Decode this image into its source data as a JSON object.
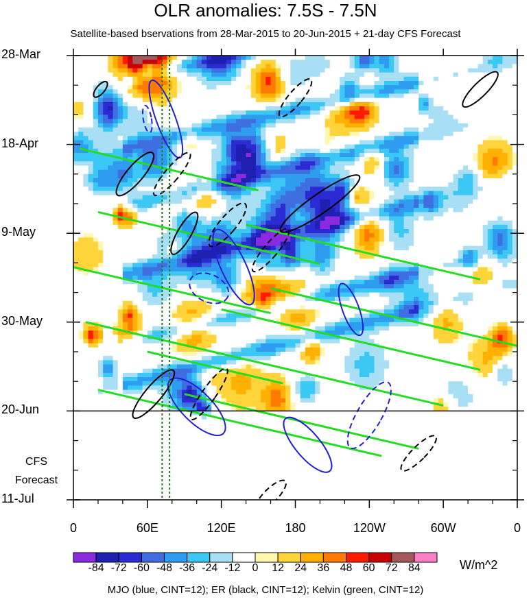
{
  "title": "OLR anomalies: 7.5S - 7.5N",
  "subtitle": "Satellite-based bservations from 28-Mar-2015 to 20-Jun-2015 + 21-day CFS Forecast",
  "forecast_label_1": "CFS",
  "forecast_label_2": "Forecast",
  "units": "W/m^2",
  "footer": "MJO (blue, CINT=12); ER (black, CINT=12); Kelvin (green, CINT=12)",
  "colors": {
    "mjo": "#1f1fd6",
    "er": "#000000",
    "kelvin": "#22dd22",
    "marker": "#1a7a1a"
  },
  "colorbar": {
    "labels": [
      "-84",
      "-72",
      "-60",
      "-48",
      "-36",
      "-24",
      "-12",
      "0",
      "12",
      "24",
      "36",
      "48",
      "60",
      "72",
      "84"
    ],
    "colors": [
      "#8a2be2",
      "#1f1fb0",
      "#2b2bd4",
      "#3f6ee0",
      "#2f9cf0",
      "#3cc8f5",
      "#a8dff5",
      "#ffffff",
      "#fff6b0",
      "#ffd43a",
      "#ffb000",
      "#ff7a00",
      "#ff1a00",
      "#c80000",
      "#a45a5a",
      "#ff7fc4"
    ]
  },
  "chart_data": {
    "type": "heatmap",
    "title": "OLR anomalies: 7.5S - 7.5N",
    "subtitle": "Satellite-based bservations from 28-Mar-2015 to 20-Jun-2015 + 21-day CFS Forecast",
    "x_ticks": [
      "0",
      "60E",
      "120E",
      "180",
      "120W",
      "60W",
      "0"
    ],
    "x_tick_values": [
      0,
      60,
      120,
      180,
      240,
      300,
      360
    ],
    "y_ticks": [
      "28-Mar",
      "18-Apr",
      "9-May",
      "30-May",
      "20-Jun",
      "11-Jul"
    ],
    "y_tick_values": [
      0,
      21,
      42,
      63,
      84,
      105
    ],
    "xlim": [
      0,
      360
    ],
    "ylim": [
      0,
      105
    ],
    "observation_end": "20-Jun",
    "forecast_end": "11-Jul",
    "forecast_label": "CFS Forecast",
    "units": "W/m^2",
    "marker_longitudes": [
      72,
      78
    ],
    "contour_interval": 12,
    "seed": 7
  }
}
